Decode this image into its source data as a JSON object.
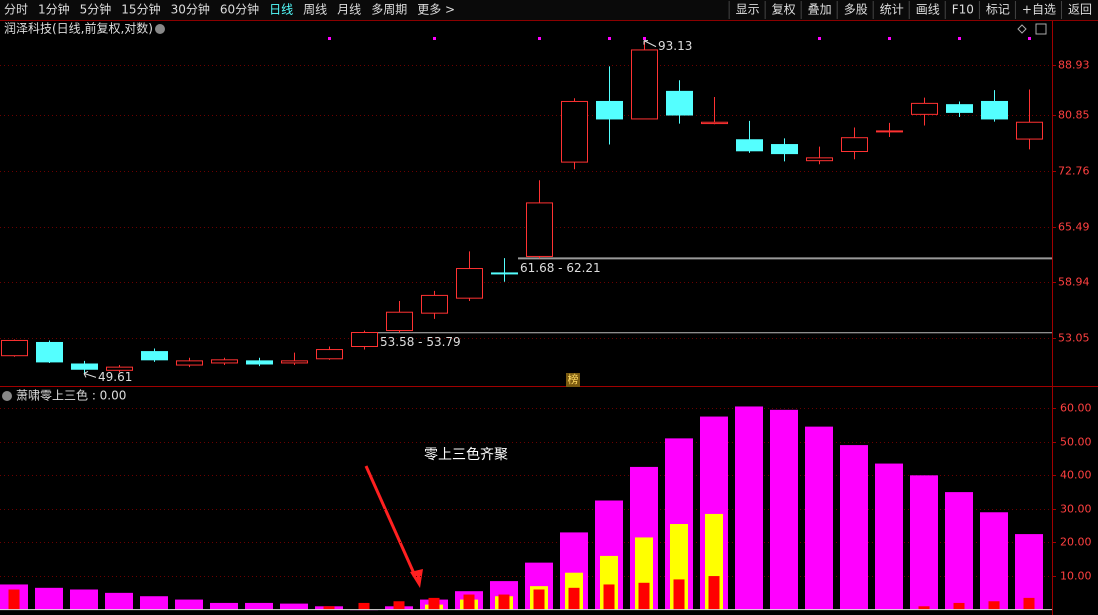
{
  "toolbar": {
    "periods": [
      "分时",
      "1分钟",
      "5分钟",
      "15分钟",
      "30分钟",
      "60分钟",
      "日线",
      "周线",
      "月线",
      "多周期",
      "更多 >"
    ],
    "active": 6,
    "buttons": [
      "显示",
      "复权",
      "叠加",
      "多股",
      "统计",
      "画线",
      "F10",
      "标记",
      "+自选",
      "返回"
    ]
  },
  "chart_data": [
    {
      "type": "candlestick",
      "title": "润泽科技(日线,前复权,对数)",
      "badge": "榜",
      "up_color": "#ff3232",
      "down_color": "#54ffff",
      "log": true,
      "grid": true,
      "ylim": [
        48.44,
        96.47
      ],
      "yticks": [
        53.05,
        58.94,
        65.49,
        72.76,
        80.85,
        88.93
      ],
      "open": [
        51.3,
        52.6,
        50.5,
        49.9,
        51.7,
        50.4,
        50.6,
        50.8,
        50.6,
        51.0,
        52.2,
        53.8,
        55.6,
        57.2,
        60.0,
        61.9,
        74.0,
        83.0,
        80.3,
        84.6,
        79.6,
        77.2,
        76.5,
        74.2,
        75.5,
        78.4,
        81.0,
        82.5,
        83.0,
        77.3
      ],
      "high": [
        52.9,
        52.8,
        50.8,
        50.4,
        52.0,
        51.1,
        51.1,
        51.1,
        51.6,
        52.2,
        53.79,
        56.9,
        58.0,
        62.5,
        61.7,
        71.5,
        83.5,
        88.7,
        93.13,
        86.4,
        83.7,
        80.0,
        77.4,
        76.2,
        79.0,
        79.7,
        83.6,
        83.0,
        84.8,
        84.9
      ],
      "low": [
        51.2,
        50.6,
        49.61,
        49.7,
        50.7,
        50.2,
        50.4,
        50.3,
        50.4,
        50.9,
        51.9,
        53.58,
        55.0,
        56.9,
        59.0,
        61.68,
        73.0,
        76.5,
        80.3,
        79.6,
        79.5,
        75.3,
        74.1,
        73.7,
        74.4,
        77.6,
        79.3,
        80.6,
        79.9,
        75.8
      ],
      "close": [
        52.8,
        50.7,
        50.0,
        50.2,
        50.9,
        50.8,
        50.9,
        50.5,
        50.8,
        51.9,
        53.6,
        55.7,
        57.5,
        60.5,
        59.9,
        68.5,
        83.0,
        80.3,
        91.5,
        80.9,
        79.8,
        75.6,
        75.2,
        74.6,
        77.5,
        78.5,
        82.7,
        81.3,
        80.3,
        79.8
      ],
      "levels": [
        {
          "value": 53.58,
          "label": "53.58 - 53.79"
        },
        {
          "value": 61.68,
          "label": "61.68 - 62.21"
        }
      ]
    },
    {
      "type": "bar",
      "title": "萧啸零上三色 : 0.00",
      "annotation": "零上三色齐聚",
      "ylim": [
        -0.7,
        66
      ],
      "yticks": [
        {
          "value": 10,
          "label": "10.00"
        },
        {
          "value": 20,
          "label": "20.00"
        },
        {
          "value": 30,
          "label": "30.00"
        },
        {
          "value": 40,
          "label": "40.00"
        },
        {
          "value": 50,
          "label": "50.00"
        },
        {
          "value": 60,
          "label": "60.00"
        }
      ],
      "series": [
        {
          "color": "#ff00ff",
          "values": [
            7.5,
            6.5,
            6,
            5,
            4,
            3,
            2,
            2,
            1.8,
            1,
            0,
            1,
            3,
            5.5,
            8.5,
            14,
            23,
            32.5,
            42.5,
            51,
            57.5,
            60.5,
            59.5,
            54.5,
            49,
            43.5,
            40,
            35,
            29,
            22.5
          ]
        },
        {
          "color": "#ffff00",
          "values": [
            null,
            null,
            null,
            null,
            null,
            null,
            null,
            null,
            null,
            null,
            null,
            null,
            1.5,
            3,
            4,
            7,
            11,
            16,
            21.5,
            25.5,
            28.5,
            null,
            null,
            null,
            null,
            null,
            null,
            null,
            null,
            null
          ]
        },
        {
          "color": "#ff0000",
          "values": [
            6,
            null,
            null,
            null,
            null,
            null,
            null,
            null,
            null,
            1,
            2,
            2.5,
            3.5,
            4.5,
            4.5,
            6,
            6.5,
            7.5,
            8,
            9,
            10,
            null,
            null,
            null,
            null,
            null,
            1,
            2,
            2.5,
            3.5
          ]
        }
      ]
    }
  ]
}
